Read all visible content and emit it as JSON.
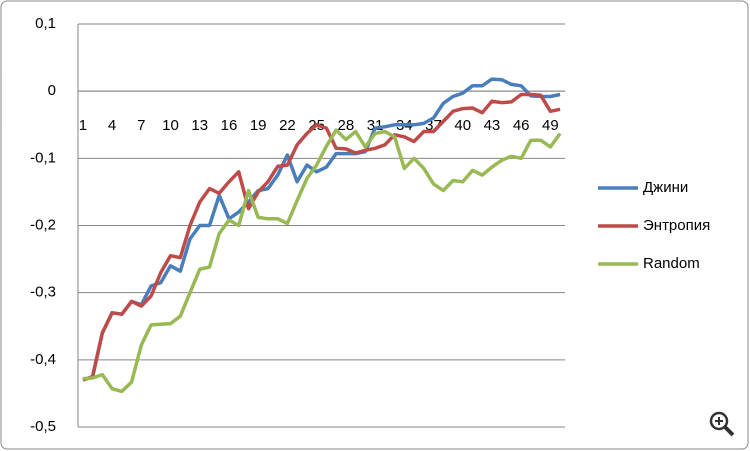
{
  "chart_data": {
    "type": "line",
    "categories": [
      1,
      null,
      null,
      4,
      null,
      null,
      7,
      null,
      null,
      10,
      null,
      null,
      13,
      null,
      null,
      16,
      null,
      null,
      19,
      null,
      null,
      22,
      null,
      null,
      25,
      null,
      null,
      28,
      null,
      null,
      31,
      null,
      null,
      34,
      null,
      null,
      37,
      null,
      null,
      40,
      null,
      null,
      43,
      null,
      null,
      46,
      null,
      null,
      49,
      null
    ],
    "series": [
      {
        "name": "Джини",
        "color": "#4a7ebb",
        "values": [
          -0.43,
          -0.425,
          -0.36,
          -0.33,
          -0.332,
          -0.313,
          -0.318,
          -0.29,
          -0.285,
          -0.26,
          -0.268,
          -0.22,
          -0.2,
          -0.2,
          -0.155,
          -0.19,
          -0.18,
          -0.165,
          -0.148,
          -0.145,
          -0.125,
          -0.095,
          -0.135,
          -0.11,
          -0.12,
          -0.113,
          -0.093,
          -0.093,
          -0.093,
          -0.09,
          -0.055,
          -0.053,
          -0.05,
          -0.05,
          -0.05,
          -0.048,
          -0.04,
          -0.018,
          -0.008,
          -0.003,
          0.008,
          0.008,
          0.018,
          0.017,
          0.01,
          0.008,
          -0.007,
          -0.008,
          -0.008,
          -0.005
        ]
      },
      {
        "name": "Энтропия",
        "color": "#be4b48",
        "values": [
          -0.43,
          -0.425,
          -0.36,
          -0.33,
          -0.332,
          -0.313,
          -0.32,
          -0.305,
          -0.27,
          -0.245,
          -0.248,
          -0.2,
          -0.165,
          -0.145,
          -0.152,
          -0.135,
          -0.12,
          -0.175,
          -0.15,
          -0.135,
          -0.112,
          -0.11,
          -0.08,
          -0.063,
          -0.05,
          -0.055,
          -0.085,
          -0.086,
          -0.092,
          -0.088,
          -0.085,
          -0.08,
          -0.065,
          -0.068,
          -0.075,
          -0.06,
          -0.06,
          -0.045,
          -0.03,
          -0.026,
          -0.025,
          -0.032,
          -0.015,
          -0.017,
          -0.016,
          -0.005,
          -0.005,
          -0.006,
          -0.03,
          -0.027
        ]
      },
      {
        "name": "Random",
        "color": "#98b954",
        "values": [
          -0.428,
          -0.427,
          -0.422,
          -0.443,
          -0.447,
          -0.433,
          -0.378,
          -0.348,
          -0.347,
          -0.346,
          -0.335,
          -0.3,
          -0.265,
          -0.262,
          -0.212,
          -0.192,
          -0.2,
          -0.148,
          -0.188,
          -0.19,
          -0.19,
          -0.197,
          -0.163,
          -0.13,
          -0.11,
          -0.082,
          -0.058,
          -0.072,
          -0.06,
          -0.083,
          -0.063,
          -0.06,
          -0.068,
          -0.115,
          -0.1,
          -0.115,
          -0.138,
          -0.148,
          -0.133,
          -0.135,
          -0.118,
          -0.125,
          -0.113,
          -0.103,
          -0.097,
          -0.1,
          -0.073,
          -0.073,
          -0.083,
          -0.063
        ]
      }
    ],
    "ylim": [
      -0.5,
      0.1
    ],
    "yticks": [
      {
        "value": -0.5,
        "label": "-0,5"
      },
      {
        "value": -0.4,
        "label": "-0,4"
      },
      {
        "value": -0.3,
        "label": "-0,3"
      },
      {
        "value": -0.2,
        "label": "-0,2"
      },
      {
        "value": -0.1,
        "label": "-0,1"
      },
      0,
      {
        "value": 0.1,
        "label": "0,1"
      }
    ],
    "grid": true
  }
}
